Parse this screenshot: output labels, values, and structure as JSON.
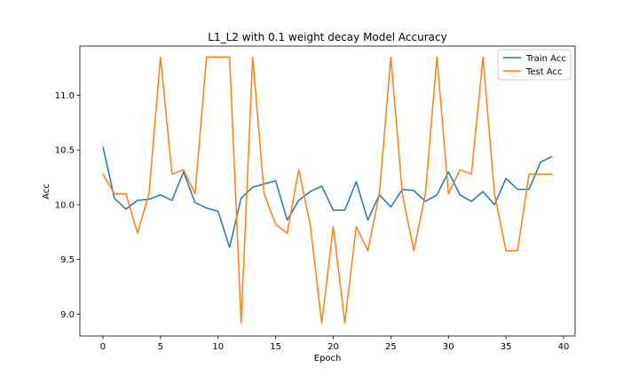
{
  "chart_data": {
    "type": "line",
    "title": "L1_L2 with 0.1 weight decay Model Accuracy",
    "xlabel": "Epoch",
    "ylabel": "Acc",
    "xlim": [
      -2,
      41
    ],
    "ylim": [
      8.8,
      11.45
    ],
    "xticks": [
      0,
      5,
      10,
      15,
      20,
      25,
      30,
      35,
      40
    ],
    "yticks": [
      9.0,
      9.5,
      10.0,
      10.5,
      11.0
    ],
    "grid": false,
    "legend_position": "upper right",
    "x": [
      0,
      1,
      2,
      3,
      4,
      5,
      6,
      7,
      8,
      9,
      10,
      11,
      12,
      13,
      14,
      15,
      16,
      17,
      18,
      19,
      20,
      21,
      22,
      23,
      24,
      25,
      26,
      27,
      28,
      29,
      30,
      31,
      32,
      33,
      34,
      35,
      36,
      37,
      38,
      39
    ],
    "series": [
      {
        "name": "Train Acc",
        "color": "#1f77b4",
        "values": [
          10.53,
          10.06,
          9.96,
          10.04,
          10.05,
          10.09,
          10.04,
          10.3,
          10.02,
          9.97,
          9.94,
          9.61,
          10.06,
          10.16,
          10.19,
          10.22,
          9.86,
          10.04,
          10.12,
          10.17,
          9.95,
          9.95,
          10.21,
          9.86,
          10.09,
          9.98,
          10.14,
          10.13,
          10.03,
          10.09,
          10.3,
          10.09,
          10.03,
          10.12,
          10.0,
          10.24,
          10.14,
          10.14,
          10.39,
          10.44
        ]
      },
      {
        "name": "Test Acc",
        "color": "#ff7f0e",
        "values": [
          10.28,
          10.1,
          10.1,
          9.74,
          10.1,
          11.35,
          10.28,
          10.32,
          10.1,
          11.35,
          11.35,
          11.35,
          8.92,
          11.35,
          10.1,
          9.82,
          9.74,
          10.32,
          9.82,
          8.92,
          9.8,
          8.92,
          9.8,
          9.58,
          10.1,
          11.35,
          10.1,
          9.58,
          10.1,
          11.35,
          10.1,
          10.32,
          10.28,
          11.35,
          10.1,
          9.58,
          9.58,
          10.28,
          10.28,
          10.28
        ]
      }
    ]
  }
}
